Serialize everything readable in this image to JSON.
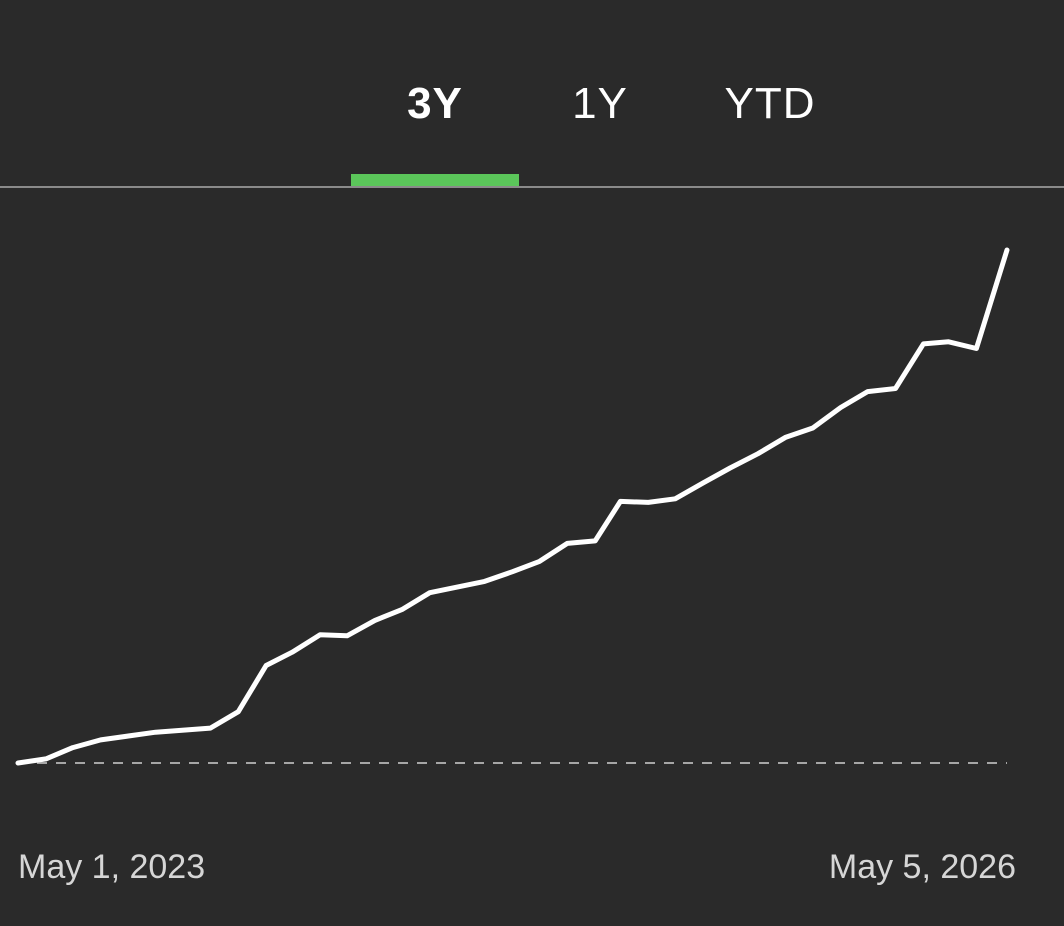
{
  "tabs": {
    "items": [
      {
        "label": "3Y",
        "active": true
      },
      {
        "label": "1Y",
        "active": false
      },
      {
        "label": "YTD",
        "active": false
      }
    ]
  },
  "colors": {
    "background": "#2a2a2a",
    "accent": "#5bc65a",
    "line": "#ffffff",
    "baseline": "#a6a6a6"
  },
  "chart_data": {
    "type": "line",
    "x": [
      "2023-05-01",
      "2023-06-01",
      "2023-07-01",
      "2023-08-01",
      "2023-10-01",
      "2023-12-01",
      "2024-01-01",
      "2024-02-01",
      "2024-03-01",
      "2024-04-01",
      "2024-05-01",
      "2024-06-01",
      "2024-07-01",
      "2024-08-01",
      "2024-10-01",
      "2024-11-01",
      "2024-12-01",
      "2025-01-01",
      "2025-02-01",
      "2025-03-01",
      "2025-04-01",
      "2025-05-01",
      "2025-06-01",
      "2025-07-01",
      "2025-08-01",
      "2025-09-01",
      "2025-10-01",
      "2025-11-01",
      "2025-12-01",
      "2026-01-01",
      "2026-02-01",
      "2026-03-01",
      "2026-04-01",
      "2026-05-05"
    ],
    "values": [
      0,
      0.8,
      3,
      4.5,
      6,
      6.8,
      10,
      19,
      21.6,
      25,
      24.8,
      27.8,
      29.9,
      33.2,
      35.4,
      37.3,
      39.3,
      42.8,
      43.3,
      51,
      50.8,
      51.5,
      54.6,
      57.5,
      60.3,
      63.5,
      65.3,
      69.3,
      72.4,
      73,
      81.7,
      82.1,
      80.8,
      100
    ],
    "baseline": 0,
    "ylim": [
      0,
      100
    ],
    "start_label": "May 1, 2023",
    "end_label": "May 5, 2026",
    "grid": false,
    "legend": "none"
  }
}
